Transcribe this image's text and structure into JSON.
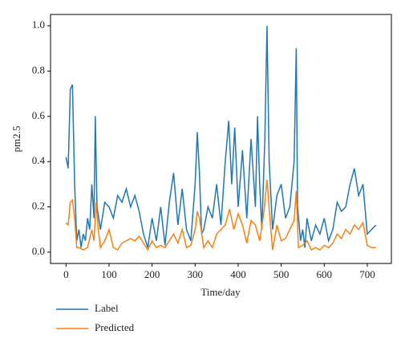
{
  "chart_data": {
    "type": "line",
    "xlabel": "Time/day",
    "ylabel": "pm2.5",
    "xlim": [
      -36,
      756
    ],
    "ylim": [
      -0.05,
      1.05
    ],
    "xticks": [
      0,
      100,
      200,
      300,
      400,
      500,
      600,
      700
    ],
    "yticks": [
      {
        "value": 0,
        "label": "0.0"
      },
      0.2,
      0.4,
      0.6,
      0.8,
      {
        "value": 1,
        "label": "1.0"
      }
    ],
    "series": [
      {
        "name": "Label",
        "color": "#1f77b4",
        "x": [
          0,
          5,
          10,
          15,
          20,
          25,
          30,
          35,
          40,
          45,
          50,
          55,
          60,
          65,
          68,
          72,
          80,
          90,
          100,
          110,
          120,
          130,
          140,
          150,
          160,
          170,
          180,
          190,
          200,
          210,
          220,
          230,
          240,
          250,
          260,
          270,
          280,
          290,
          300,
          305,
          310,
          315,
          320,
          330,
          340,
          350,
          360,
          370,
          378,
          385,
          392,
          400,
          410,
          420,
          430,
          440,
          445,
          450,
          455,
          462,
          467,
          472,
          480,
          490,
          500,
          510,
          520,
          530,
          535,
          538,
          545,
          550,
          555,
          560,
          570,
          580,
          590,
          600,
          610,
          620,
          630,
          640,
          650,
          660,
          670,
          680,
          690,
          700,
          710,
          720
        ],
        "values": [
          0.42,
          0.37,
          0.72,
          0.74,
          0.3,
          0.05,
          0.1,
          0.02,
          0.08,
          0.05,
          0.15,
          0.1,
          0.3,
          0.15,
          0.6,
          0.2,
          0.1,
          0.22,
          0.2,
          0.15,
          0.25,
          0.22,
          0.28,
          0.2,
          0.25,
          0.18,
          0.08,
          0.02,
          0.15,
          0.05,
          0.2,
          0.03,
          0.22,
          0.35,
          0.12,
          0.28,
          0.1,
          0.05,
          0.3,
          0.53,
          0.35,
          0.08,
          0.1,
          0.2,
          0.15,
          0.3,
          0.12,
          0.4,
          0.58,
          0.3,
          0.55,
          0.2,
          0.45,
          0.15,
          0.5,
          0.2,
          0.6,
          0.3,
          0.1,
          0.5,
          1.0,
          0.4,
          0.1,
          0.25,
          0.3,
          0.15,
          0.2,
          0.4,
          0.9,
          0.2,
          0.05,
          0.1,
          0.02,
          0.15,
          0.05,
          0.12,
          0.08,
          0.15,
          0.05,
          0.1,
          0.22,
          0.18,
          0.2,
          0.3,
          0.37,
          0.25,
          0.3,
          0.08,
          0.1,
          0.12
        ]
      },
      {
        "name": "Predicted",
        "color": "#ff7f0e",
        "x": [
          0,
          5,
          10,
          15,
          20,
          25,
          30,
          40,
          50,
          60,
          65,
          70,
          75,
          80,
          90,
          100,
          110,
          120,
          130,
          140,
          150,
          160,
          170,
          180,
          190,
          200,
          210,
          220,
          230,
          240,
          250,
          260,
          270,
          280,
          290,
          300,
          305,
          310,
          320,
          330,
          340,
          350,
          360,
          370,
          380,
          390,
          400,
          410,
          420,
          430,
          440,
          450,
          460,
          467,
          475,
          480,
          490,
          500,
          510,
          520,
          530,
          535,
          540,
          550,
          560,
          570,
          580,
          590,
          600,
          610,
          620,
          630,
          640,
          650,
          660,
          670,
          680,
          690,
          700,
          710,
          720
        ],
        "values": [
          0.13,
          0.12,
          0.22,
          0.23,
          0.15,
          0.02,
          0.02,
          0.01,
          0.02,
          0.1,
          0.05,
          0.22,
          0.1,
          0.02,
          0.05,
          0.1,
          0.02,
          0.01,
          0.04,
          0.05,
          0.06,
          0.05,
          0.07,
          0.04,
          0.01,
          0.05,
          0.02,
          0.03,
          0.02,
          0.05,
          0.08,
          0.04,
          0.1,
          0.02,
          0.03,
          0.1,
          0.18,
          0.15,
          0.02,
          0.05,
          0.02,
          0.08,
          0.1,
          0.12,
          0.19,
          0.1,
          0.17,
          0.12,
          0.04,
          0.14,
          0.12,
          0.05,
          0.18,
          0.32,
          0.12,
          0.01,
          0.12,
          0.05,
          0.06,
          0.1,
          0.14,
          0.27,
          0.02,
          0.03,
          0.05,
          0.01,
          0.02,
          0.01,
          0.03,
          0.02,
          0.04,
          0.08,
          0.06,
          0.1,
          0.08,
          0.12,
          0.1,
          0.13,
          0.03,
          0.02,
          0.02
        ]
      }
    ]
  }
}
